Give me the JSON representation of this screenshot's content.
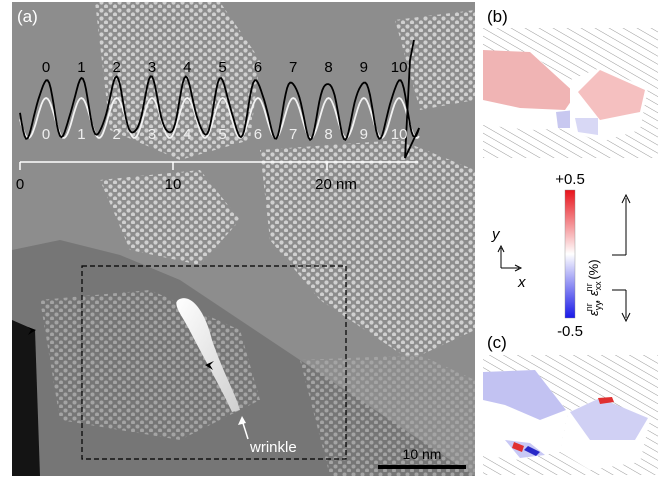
{
  "panels": {
    "a": {
      "label": "(a)"
    },
    "b": {
      "label": "(b)"
    },
    "c": {
      "label": "(c)"
    }
  },
  "profile": {
    "black_numbers": [
      "0",
      "1",
      "2",
      "3",
      "4",
      "5",
      "6",
      "7",
      "8",
      "9",
      "10"
    ],
    "white_numbers": [
      "0",
      "1",
      "2",
      "3",
      "4",
      "5",
      "6",
      "7",
      "8",
      "9",
      "10"
    ],
    "axis": {
      "tick_labels": [
        "0",
        "10",
        "20 nm"
      ]
    }
  },
  "annotations": {
    "wrinkle_label": "wrinkle",
    "scale_bar_label": "10 nm"
  },
  "colorbar": {
    "max_label": "+0.5",
    "min_label": "-0.5",
    "colors": {
      "max": "#e8131b",
      "mid": "#ffffff",
      "min": "#1818e8"
    }
  },
  "axes_indicator": {
    "y": "y",
    "x": "x"
  }
}
